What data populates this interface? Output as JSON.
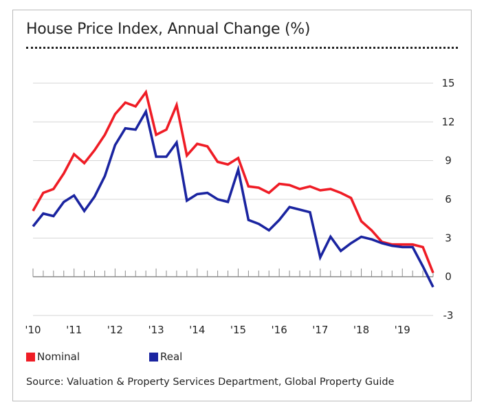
{
  "title": "House Price Index, Annual Change (%)",
  "source": "Source: Valuation & Property Services Department, Global Property Guide",
  "colors": {
    "nominal": "#ef1c25",
    "real": "#1a24a0",
    "grid": "#d4d4d4",
    "axis": "#8a8a8a"
  },
  "chart_data": {
    "type": "line",
    "title": "House Price Index, Annual Change (%)",
    "xlabel": "",
    "ylabel": "",
    "x_ticks": [
      "'10",
      "'11",
      "'12",
      "'13",
      "'14",
      "'15",
      "'16",
      "'17",
      "'18",
      "'19"
    ],
    "y_ticks": [
      15,
      12,
      9,
      6,
      3,
      0,
      -3
    ],
    "xlim": [
      2010.0,
      2019.75
    ],
    "ylim": [
      -3,
      15
    ],
    "grid": true,
    "legend": "bottom-left",
    "x": [
      2010.0,
      2010.25,
      2010.5,
      2010.75,
      2011.0,
      2011.25,
      2011.5,
      2011.75,
      2012.0,
      2012.25,
      2012.5,
      2012.75,
      2013.0,
      2013.25,
      2013.5,
      2013.75,
      2014.0,
      2014.25,
      2014.5,
      2014.75,
      2015.0,
      2015.25,
      2015.5,
      2015.75,
      2016.0,
      2016.25,
      2016.5,
      2016.75,
      2017.0,
      2017.25,
      2017.5,
      2017.75,
      2018.0,
      2018.25,
      2018.5,
      2018.75,
      2019.0,
      2019.25,
      2019.5,
      2019.75
    ],
    "series": [
      {
        "name": "Nominal",
        "values": [
          5.1,
          6.5,
          6.8,
          8.0,
          9.5,
          8.8,
          9.8,
          11.0,
          12.6,
          13.5,
          13.2,
          14.3,
          11.0,
          11.4,
          13.3,
          9.4,
          10.3,
          10.1,
          8.9,
          8.7,
          9.2,
          7.0,
          6.9,
          6.5,
          7.2,
          7.1,
          6.8,
          7.0,
          6.7,
          6.8,
          6.5,
          6.1,
          4.3,
          3.6,
          2.7,
          2.5,
          2.5,
          2.5,
          2.3,
          0.3
        ]
      },
      {
        "name": "Real",
        "values": [
          3.9,
          4.9,
          4.7,
          5.8,
          6.3,
          5.1,
          6.2,
          7.8,
          10.2,
          11.5,
          11.4,
          12.8,
          9.3,
          9.3,
          10.4,
          5.9,
          6.4,
          6.5,
          6.0,
          5.8,
          8.3,
          4.4,
          4.1,
          3.6,
          4.4,
          5.4,
          5.2,
          5.0,
          1.5,
          3.1,
          2.0,
          2.6,
          3.1,
          2.9,
          2.6,
          2.4,
          2.3,
          2.3,
          0.8,
          -0.8
        ]
      }
    ]
  }
}
